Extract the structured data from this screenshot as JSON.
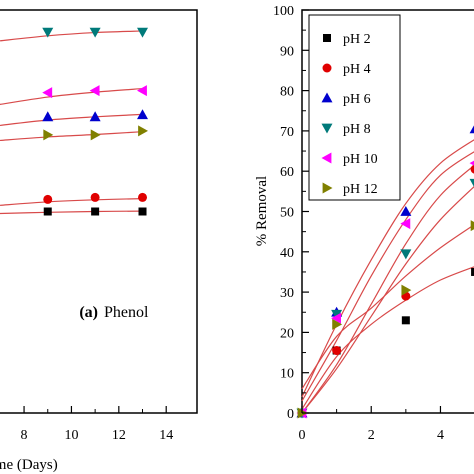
{
  "chart_data": [
    {
      "type": "scatter",
      "panel_label": "(a)",
      "panel_title": "Phenol",
      "xlabel": "Time (Days)",
      "x_ticks": [
        8,
        10,
        12,
        14
      ],
      "xlim": [
        6.9,
        15.3
      ],
      "ylim": [
        0,
        100
      ],
      "series": [
        {
          "color": "#007a7a",
          "marker": "triangle-down",
          "points": [
            [
              9,
              94.5
            ],
            [
              11,
              94.5
            ],
            [
              13,
              94.5
            ]
          ],
          "fit": [
            [
              6.9,
              92.3
            ],
            [
              9,
              93.6
            ],
            [
              11,
              94.4
            ],
            [
              13,
              94.8
            ]
          ]
        },
        {
          "color": "#ff00ff",
          "marker": "triangle-left",
          "points": [
            [
              9,
              79.5
            ],
            [
              11,
              80
            ],
            [
              13,
              80
            ]
          ],
          "fit": [
            [
              6.9,
              76.5
            ],
            [
              9,
              78.4
            ],
            [
              11,
              79.6
            ],
            [
              13,
              80.5
            ]
          ]
        },
        {
          "color": "#0000cd",
          "marker": "triangle-up",
          "points": [
            [
              9,
              73.5
            ],
            [
              11,
              73.5
            ],
            [
              13,
              74
            ]
          ],
          "fit": [
            [
              6.9,
              71.3
            ],
            [
              9,
              72.7
            ],
            [
              11,
              73.5
            ],
            [
              13,
              74.1
            ]
          ]
        },
        {
          "color": "#808000",
          "marker": "triangle-right",
          "points": [
            [
              9,
              69
            ],
            [
              11,
              69
            ],
            [
              13,
              70
            ]
          ],
          "fit": [
            [
              6.9,
              67.6
            ],
            [
              9,
              68.5
            ],
            [
              11,
              69.1
            ],
            [
              13,
              69.8
            ]
          ]
        },
        {
          "color": "#e00000",
          "marker": "circle",
          "points": [
            [
              9,
              53
            ],
            [
              11,
              53.5
            ],
            [
              13,
              53.5
            ]
          ],
          "fit": [
            [
              6.9,
              51.5
            ],
            [
              9,
              52.4
            ],
            [
              11,
              52.9
            ],
            [
              13,
              53.2
            ]
          ]
        },
        {
          "color": "#000000",
          "marker": "square",
          "points": [
            [
              9,
              50
            ],
            [
              11,
              50
            ],
            [
              13,
              50
            ]
          ],
          "fit": [
            [
              6.9,
              49.5
            ],
            [
              9,
              49.8
            ],
            [
              11,
              50
            ],
            [
              13,
              50.1
            ]
          ]
        }
      ]
    },
    {
      "type": "scatter",
      "ylabel": "% Removal",
      "x_ticks": [
        0,
        2,
        4
      ],
      "y_ticks": [
        0,
        10,
        20,
        30,
        40,
        50,
        60,
        70,
        80,
        90,
        100
      ],
      "xlim": [
        0,
        5.2
      ],
      "ylim": [
        0,
        100
      ],
      "legend_position": "top-left",
      "series": [
        {
          "name": "pH 2",
          "color": "#000000",
          "marker": "square",
          "points": [
            [
              0,
              0
            ],
            [
              1,
              15.5
            ],
            [
              3,
              23
            ],
            [
              5,
              35
            ]
          ],
          "fit": [
            [
              0,
              1
            ],
            [
              1,
              14
            ],
            [
              2,
              22
            ],
            [
              3,
              28
            ],
            [
              4,
              33
            ],
            [
              5.2,
              37
            ]
          ]
        },
        {
          "name": "pH 4",
          "color": "#e00000",
          "marker": "circle",
          "points": [
            [
              0,
              0
            ],
            [
              1,
              15.5
            ],
            [
              3,
              29
            ],
            [
              5,
              60.5
            ]
          ],
          "fit": [
            [
              0,
              0
            ],
            [
              1,
              11
            ],
            [
              2,
              24
            ],
            [
              3,
              37
            ],
            [
              4,
              48
            ],
            [
              5.2,
              58
            ]
          ]
        },
        {
          "name": "pH 6",
          "color": "#0000cd",
          "marker": "triangle-up",
          "points": [
            [
              0,
              0
            ],
            [
              1,
              25
            ],
            [
              3,
              50
            ],
            [
              5,
              70.5
            ]
          ],
          "fit": [
            [
              0,
              3
            ],
            [
              1,
              18
            ],
            [
              2,
              34
            ],
            [
              3,
              48
            ],
            [
              4,
              59
            ],
            [
              5.2,
              66
            ]
          ]
        },
        {
          "name": "pH 8",
          "color": "#007a7a",
          "marker": "triangle-down",
          "points": [
            [
              0,
              0
            ],
            [
              1,
              24.5
            ],
            [
              3,
              39.5
            ],
            [
              5,
              57
            ]
          ],
          "fit": [
            [
              0,
              0
            ],
            [
              1,
              12
            ],
            [
              2,
              27
            ],
            [
              3,
              42
            ],
            [
              4,
              54
            ],
            [
              5.2,
              63
            ]
          ]
        },
        {
          "name": "pH 10",
          "color": "#ff00ff",
          "marker": "triangle-left",
          "points": [
            [
              0,
              0
            ],
            [
              1,
              23.5
            ],
            [
              3,
              47
            ],
            [
              5,
              62
            ]
          ],
          "fit": [
            [
              0,
              4
            ],
            [
              1,
              22
            ],
            [
              2,
              38
            ],
            [
              3,
              52
            ],
            [
              4,
              62
            ],
            [
              5.2,
              69
            ]
          ]
        },
        {
          "name": "pH 12",
          "color": "#808000",
          "marker": "triangle-right",
          "points": [
            [
              0,
              0
            ],
            [
              1,
              22
            ],
            [
              3,
              30.5
            ],
            [
              5,
              46.5
            ]
          ],
          "fit": [
            [
              0,
              6
            ],
            [
              1,
              19
            ],
            [
              2,
              26
            ],
            [
              3,
              34
            ],
            [
              4,
              41
            ],
            [
              5.2,
              48
            ]
          ]
        }
      ]
    }
  ]
}
